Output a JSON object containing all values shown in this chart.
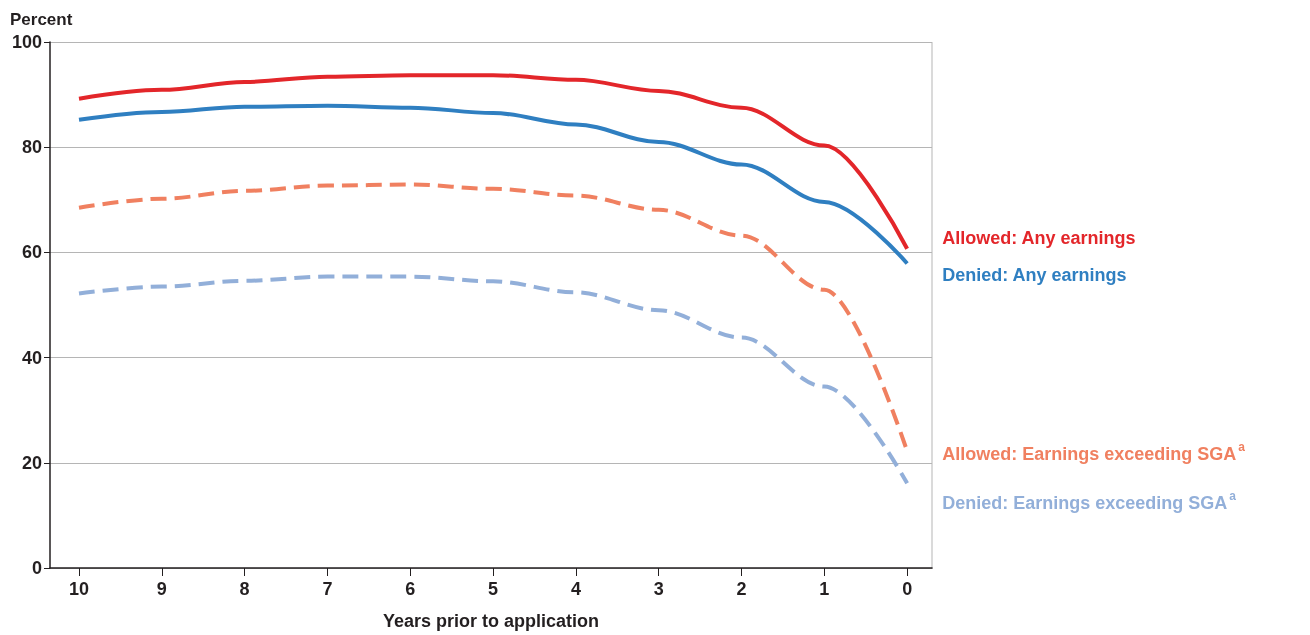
{
  "chart_data": {
    "type": "line",
    "ylabel": "Percent",
    "xlabel": "Years prior to application",
    "x": [
      10,
      9,
      8,
      7,
      6,
      5,
      4,
      3,
      2,
      1,
      0
    ],
    "xlim": [
      10.35,
      -0.3
    ],
    "xticks": [
      10,
      9,
      8,
      7,
      6,
      5,
      4,
      3,
      2,
      1,
      0
    ],
    "ylim": [
      0,
      100
    ],
    "yticks": [
      0,
      20,
      40,
      60,
      80,
      100
    ],
    "grid": "y",
    "legend": false,
    "marker": "none",
    "series": [
      {
        "name": "Allowed: Any earnings",
        "color": "#e3262a",
        "line_style": "solid",
        "values": [
          89.2,
          90.9,
          92.4,
          93.4,
          93.7,
          93.7,
          92.8,
          90.7,
          87.5,
          80.3,
          60.7
        ]
      },
      {
        "name": "Denied: Any earnings",
        "color": "#2f7fc1",
        "line_style": "solid",
        "values": [
          85.2,
          86.7,
          87.7,
          87.9,
          87.5,
          86.5,
          84.3,
          81.0,
          76.7,
          69.6,
          57.9
        ]
      },
      {
        "name": "Allowed: Earnings exceeding SGA$^{a}$",
        "color": "#f08060",
        "line_style": "dashed",
        "values": [
          68.5,
          70.2,
          71.7,
          72.7,
          72.9,
          72.1,
          70.8,
          68.1,
          63.2,
          52.9,
          22.2
        ]
      },
      {
        "name": "Denied: Earnings exceeding SGA$^{a}$",
        "color": "#92afd9",
        "line_style": "dashed",
        "values": [
          52.2,
          53.5,
          54.6,
          55.4,
          55.4,
          54.5,
          52.4,
          49.0,
          43.8,
          34.5,
          16.1
        ]
      }
    ]
  }
}
